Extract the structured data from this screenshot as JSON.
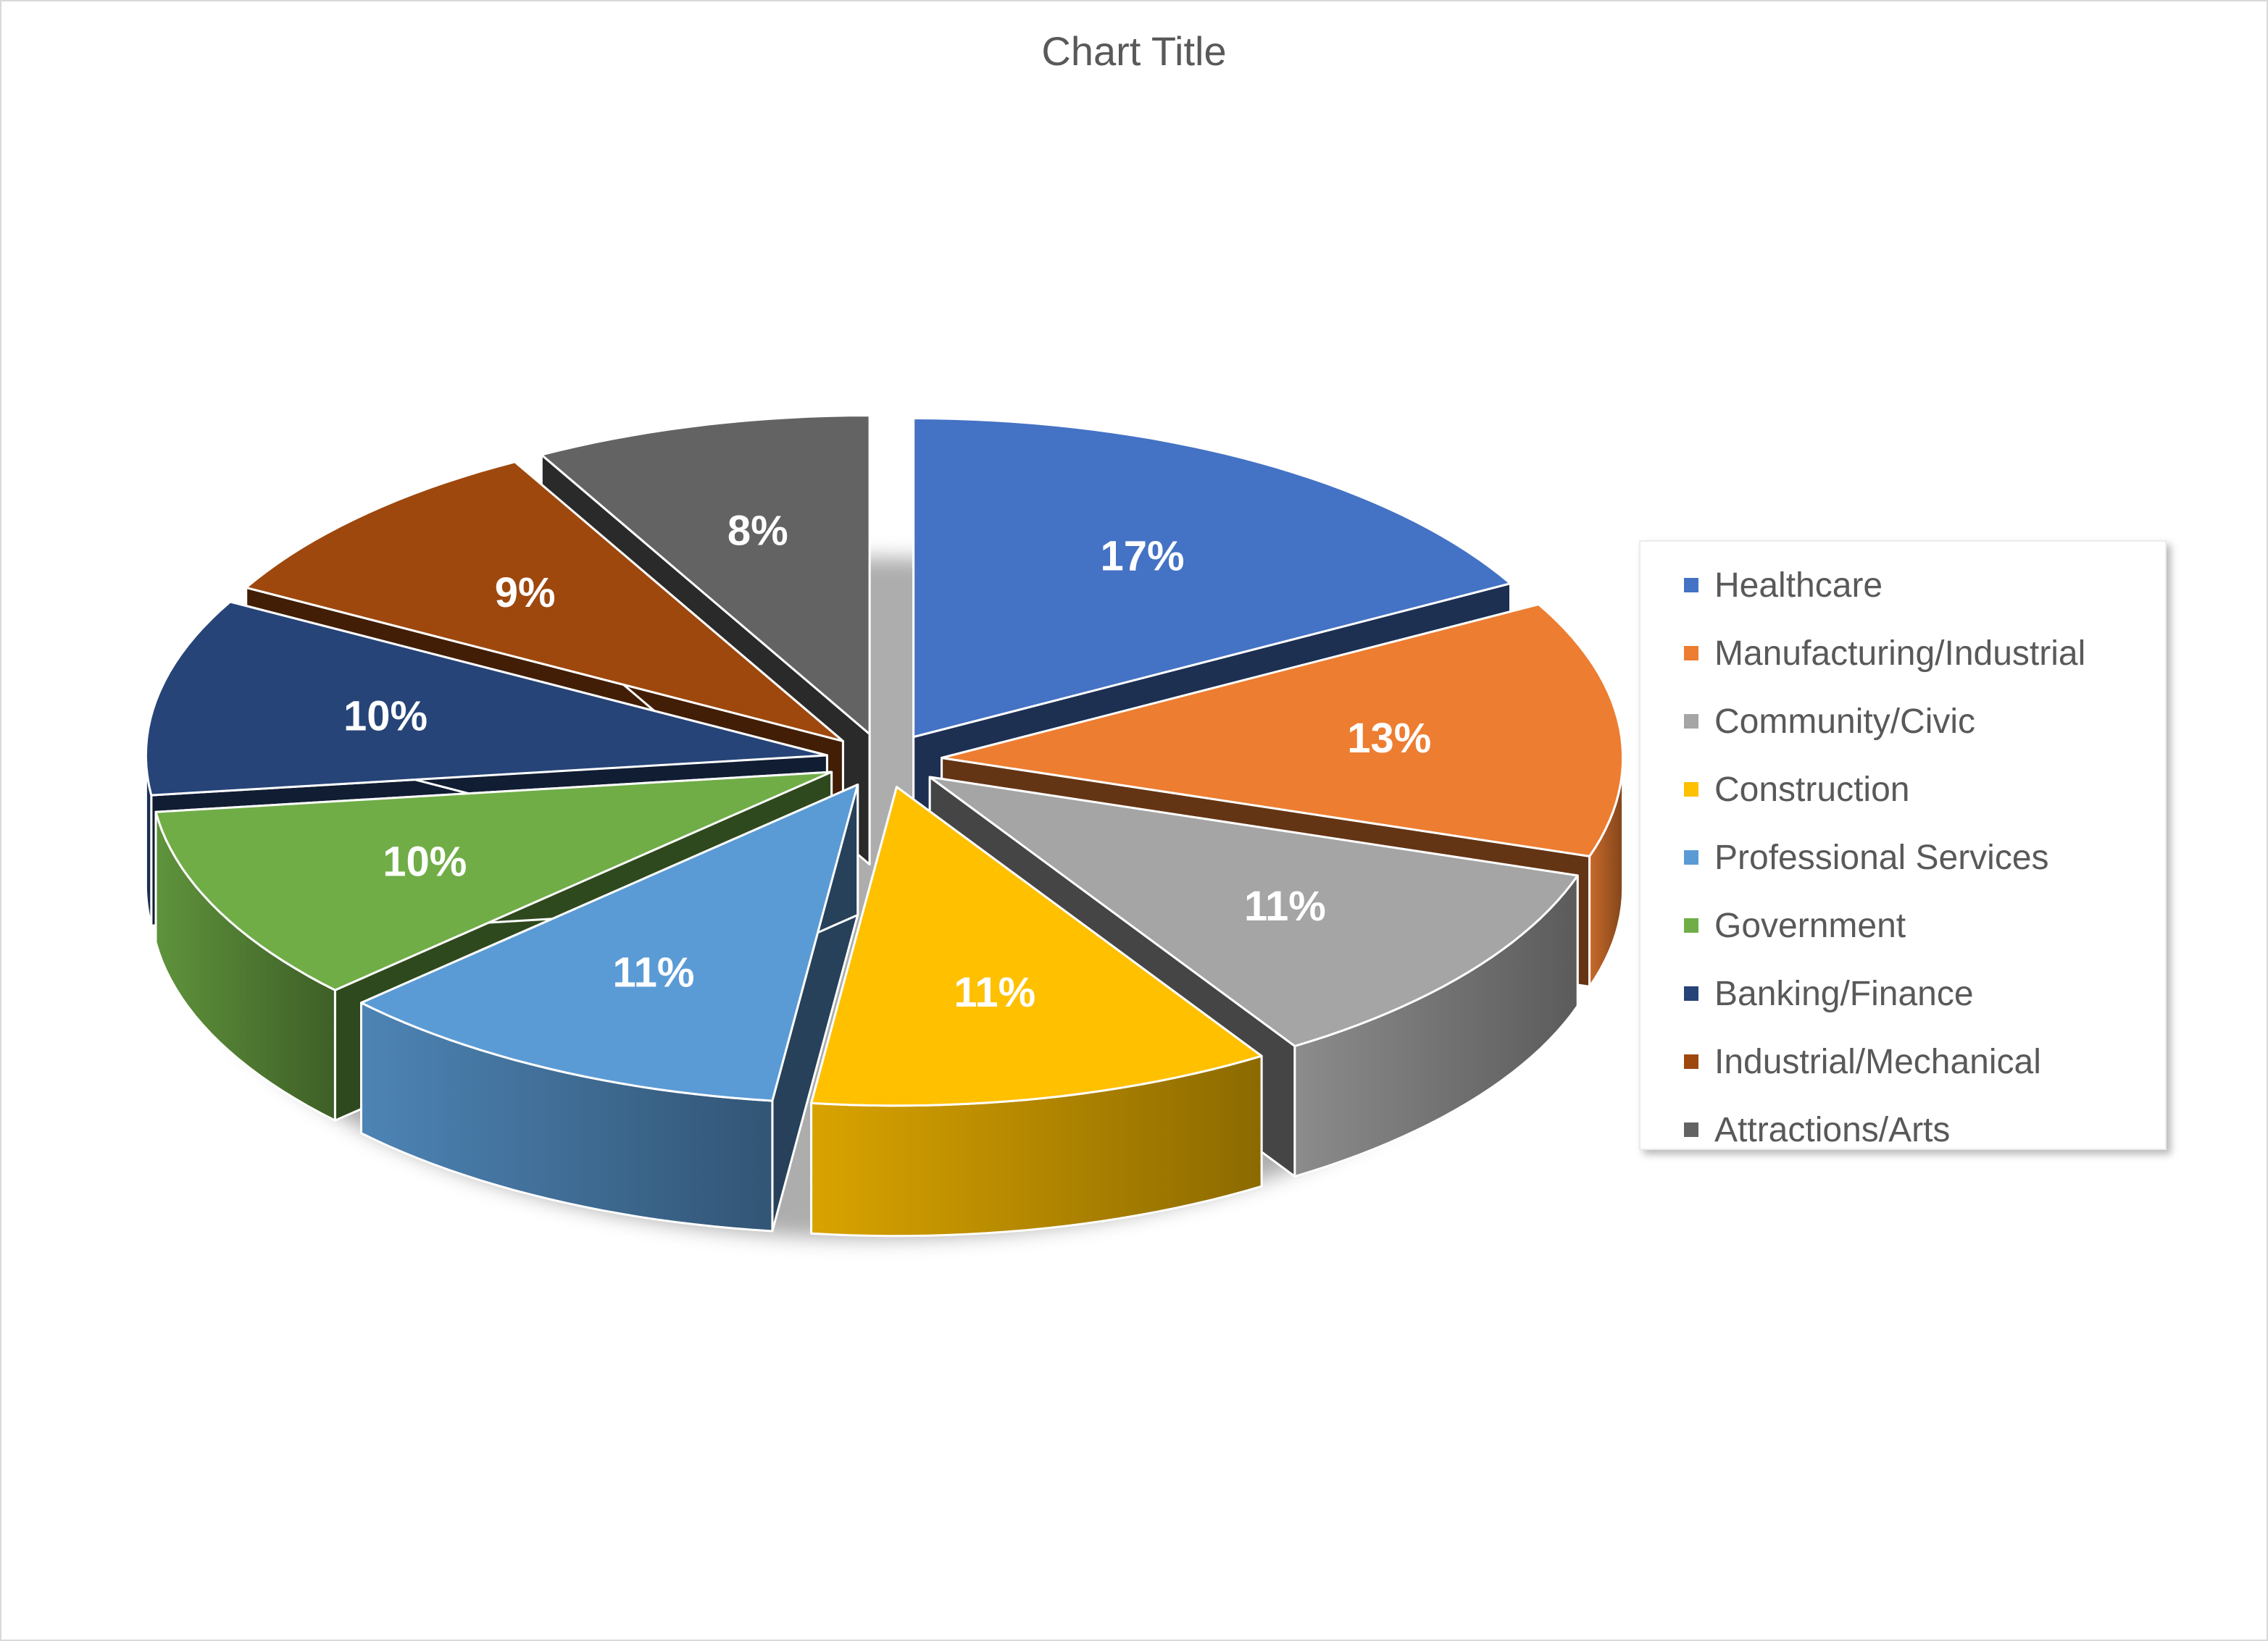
{
  "chart_data": {
    "type": "pie",
    "title": "Chart Title",
    "style": "3d-exploded",
    "legend_position": "right",
    "categories": [
      "Healthcare",
      "Manufacturing/Industrial",
      "Community/Civic",
      "Construction",
      "Professional Services",
      "Government",
      "Banking/Finance",
      "Industrial/Mechanical",
      "Attractions/Arts"
    ],
    "values": [
      17,
      13,
      11,
      11,
      11,
      10,
      10,
      9,
      8
    ],
    "data_labels": [
      "17%",
      "13%",
      "11%",
      "11%",
      "11%",
      "10%",
      "10%",
      "9%",
      "8%"
    ],
    "colors": [
      "#4472C4",
      "#ED7D31",
      "#A5A5A5",
      "#FFC000",
      "#5B9BD5",
      "#70AD47",
      "#264478",
      "#9E480E",
      "#636363"
    ]
  }
}
